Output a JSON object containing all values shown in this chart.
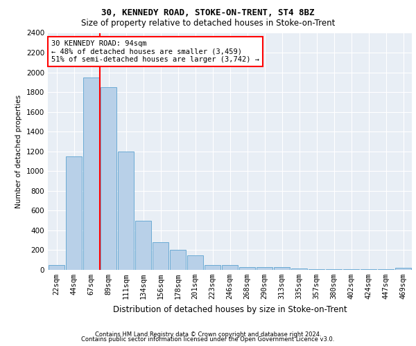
{
  "title1": "30, KENNEDY ROAD, STOKE-ON-TRENT, ST4 8BZ",
  "title2": "Size of property relative to detached houses in Stoke-on-Trent",
  "xlabel": "Distribution of detached houses by size in Stoke-on-Trent",
  "ylabel": "Number of detached properties",
  "categories": [
    "22sqm",
    "44sqm",
    "67sqm",
    "89sqm",
    "111sqm",
    "134sqm",
    "156sqm",
    "178sqm",
    "201sqm",
    "223sqm",
    "246sqm",
    "268sqm",
    "290sqm",
    "313sqm",
    "335sqm",
    "357sqm",
    "380sqm",
    "402sqm",
    "424sqm",
    "447sqm",
    "469sqm"
  ],
  "values": [
    50,
    1150,
    1950,
    1850,
    1200,
    500,
    280,
    200,
    150,
    50,
    50,
    30,
    30,
    25,
    15,
    10,
    10,
    5,
    5,
    5,
    20
  ],
  "bar_color": "#b8d0e8",
  "bar_edge_color": "#6aaad4",
  "red_line_x": 2.5,
  "annotation_text": "30 KENNEDY ROAD: 94sqm\n← 48% of detached houses are smaller (3,459)\n51% of semi-detached houses are larger (3,742) →",
  "footer1": "Contains HM Land Registry data © Crown copyright and database right 2024.",
  "footer2": "Contains public sector information licensed under the Open Government Licence v3.0.",
  "ylim": [
    0,
    2400
  ],
  "yticks": [
    0,
    200,
    400,
    600,
    800,
    1000,
    1200,
    1400,
    1600,
    1800,
    2000,
    2200,
    2400
  ],
  "bg_color": "#e8eef5",
  "title1_fontsize": 9,
  "title2_fontsize": 8.5,
  "xlabel_fontsize": 8.5,
  "ylabel_fontsize": 7.5,
  "tick_fontsize": 7.5,
  "annot_fontsize": 7.5,
  "footer_fontsize": 6
}
